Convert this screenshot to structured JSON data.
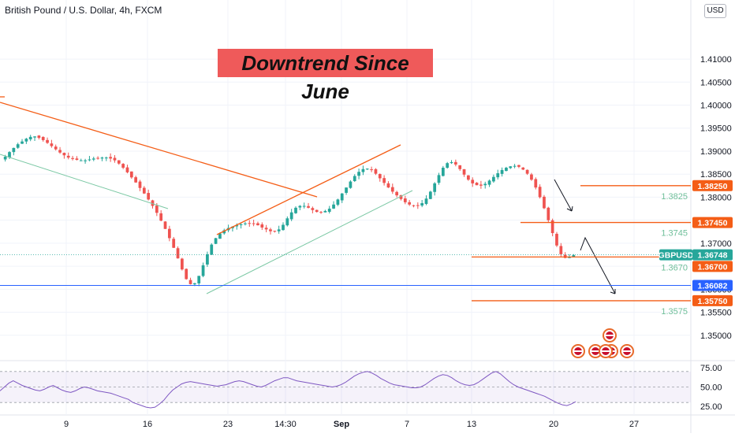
{
  "header": {
    "symbol_title": "British Pound / U.S. Dollar, 4h, FXCM",
    "currency_button": "USD"
  },
  "annotation": {
    "banner_text": "Downtrend Since June",
    "banner_color": "#ef5a5a"
  },
  "colors": {
    "up": "#26a69a",
    "down": "#ef5350",
    "orange": "#f45d16",
    "green_line": "#7bc8a4",
    "support_blue": "#2962ff",
    "rsi": "#7e57c2"
  },
  "chart_data": {
    "type": "candlestick",
    "title": "British Pound / U.S. Dollar, 4h, FXCM",
    "ylim": [
      1.345,
      1.416
    ],
    "price_ticks": [
      "1.41000",
      "1.40500",
      "1.40000",
      "1.39500",
      "1.39000",
      "1.38500",
      "1.38000",
      "1.37500",
      "1.37000",
      "1.36500",
      "1.36000",
      "1.35500",
      "1.35000"
    ],
    "x_ticks": [
      "9",
      "16",
      "23",
      "14:30",
      "Sep",
      "7",
      "13",
      "20",
      "27"
    ],
    "price_labels": [
      {
        "text": "1.38250",
        "value": 1.3825,
        "color": "#f45d16"
      },
      {
        "text": "1.37450",
        "value": 1.3745,
        "color": "#f45d16"
      },
      {
        "text": "GBPUSD",
        "value": 1.36748,
        "color": "#26a69a"
      },
      {
        "text": "1.36748",
        "value": 1.36748,
        "color": "#26a69a"
      },
      {
        "text": "1.36700",
        "value": 1.367,
        "color": "#f45d16"
      },
      {
        "text": "1.36082",
        "value": 1.36082,
        "color": "#2962ff"
      },
      {
        "text": "1.35750",
        "value": 1.3575,
        "color": "#f45d16"
      }
    ],
    "level_notes": [
      {
        "text": "1.3825",
        "value": 1.3825
      },
      {
        "text": "1.3745",
        "value": 1.3745
      },
      {
        "text": "1.3670",
        "value": 1.367
      },
      {
        "text": "1.3575",
        "value": 1.3575
      }
    ],
    "rsi": {
      "ticks": [
        "75.00",
        "50.00",
        "25.00"
      ],
      "levels": [
        70,
        50,
        30
      ]
    },
    "close": [
      1.3888,
      1.3898,
      1.3907,
      1.3915,
      1.3921,
      1.3927,
      1.3931,
      1.3932,
      1.3929,
      1.3924,
      1.3918,
      1.3911,
      1.3904,
      1.3897,
      1.3891,
      1.3886,
      1.3883,
      1.3881,
      1.388,
      1.388,
      1.3882,
      1.3884,
      1.3885,
      1.3886,
      1.3886,
      1.3884,
      1.388,
      1.3873,
      1.3864,
      1.3854,
      1.3843,
      1.3832,
      1.382,
      1.3808,
      1.3795,
      1.3781,
      1.3766,
      1.3749,
      1.3731,
      1.3711,
      1.369,
      1.3667,
      1.3643,
      1.3622,
      1.3611,
      1.3613,
      1.3629,
      1.3652,
      1.3676,
      1.3697,
      1.3711,
      1.3721,
      1.3728,
      1.3733,
      1.3736,
      1.3739,
      1.3741,
      1.3743,
      1.3743,
      1.3742,
      1.3739,
      1.3734,
      1.373,
      1.3726,
      1.3726,
      1.373,
      1.374,
      1.3754,
      1.3767,
      1.3777,
      1.3781,
      1.3781,
      1.3777,
      1.3772,
      1.3768,
      1.3767,
      1.377,
      1.3775,
      1.3784,
      1.3795,
      1.3808,
      1.3821,
      1.3834,
      1.3846,
      1.3855,
      1.3861,
      1.3862,
      1.3859,
      1.3851,
      1.3841,
      1.3831,
      1.3821,
      1.3812,
      1.3804,
      1.3796,
      1.3789,
      1.3784,
      1.3781,
      1.3782,
      1.3787,
      1.3797,
      1.3812,
      1.383,
      1.3848,
      1.3864,
      1.3874,
      1.3876,
      1.3871,
      1.3861,
      1.3849,
      1.3838,
      1.383,
      1.3826,
      1.3825,
      1.3829,
      1.3836,
      1.3844,
      1.3852,
      1.3859,
      1.3864,
      1.3867,
      1.3868,
      1.3866,
      1.386,
      1.3851,
      1.3838,
      1.3821,
      1.38,
      1.3776,
      1.375,
      1.3722,
      1.3695,
      1.3676,
      1.3668,
      1.367,
      1.3674
    ],
    "rsi_values": [
      45,
      50,
      55,
      58,
      55,
      52,
      50,
      48,
      46,
      45,
      47,
      50,
      52,
      49,
      46,
      44,
      43,
      45,
      48,
      50,
      49,
      47,
      45,
      44,
      43,
      42,
      40,
      38,
      36,
      34,
      30,
      28,
      26,
      24,
      23,
      24,
      28,
      33,
      40,
      46,
      50,
      54,
      56,
      57,
      56,
      55,
      54,
      53,
      52,
      51,
      52,
      53,
      55,
      57,
      58,
      57,
      55,
      53,
      51,
      50,
      52,
      55,
      58,
      60,
      62,
      62,
      60,
      58,
      57,
      56,
      55,
      54,
      53,
      52,
      51,
      50,
      51,
      53,
      56,
      60,
      64,
      67,
      69,
      70,
      68,
      65,
      61,
      58,
      55,
      53,
      52,
      51,
      50,
      49,
      49,
      50,
      53,
      57,
      61,
      64,
      66,
      65,
      62,
      58,
      55,
      53,
      52,
      53,
      56,
      60,
      64,
      68,
      70,
      67,
      62,
      57,
      53,
      50,
      48,
      46,
      44,
      42,
      40,
      38,
      35,
      32,
      29,
      27,
      26,
      28,
      31
    ]
  }
}
